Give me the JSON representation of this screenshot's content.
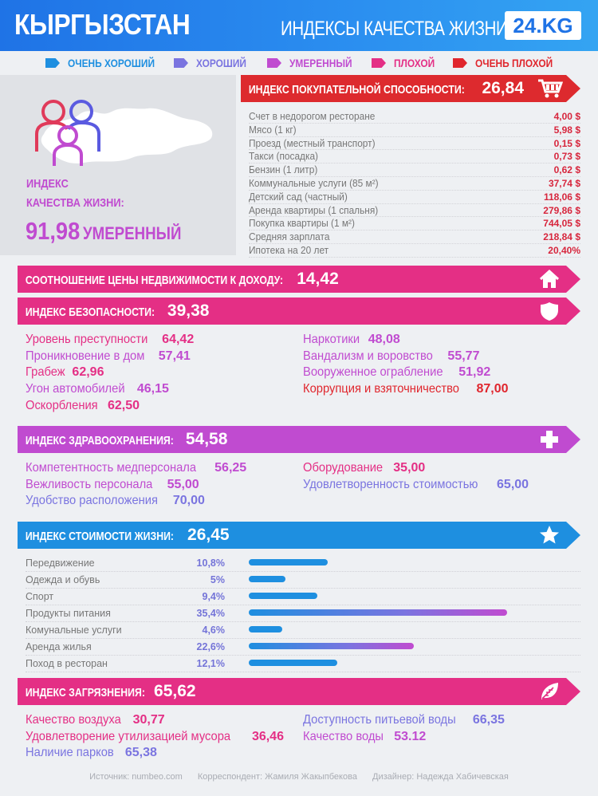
{
  "header": {
    "country": "КЫРГЫЗСТАН",
    "subtitle": "ИНДЕКСЫ КАЧЕСТВА ЖИЗНИ",
    "brand": "24.KG"
  },
  "legend": [
    {
      "label": "ОЧЕНЬ ХОРОШИЙ",
      "color": "#1e8fe0"
    },
    {
      "label": "ХОРОШИЙ",
      "color": "#7a74e0"
    },
    {
      "label": "УМЕРЕННЫЙ",
      "color": "#c04bd0"
    },
    {
      "label": "ПЛОХОЙ",
      "color": "#e42f85"
    },
    {
      "label": "ОЧЕНЬ ПЛОХОЙ",
      "color": "#e0262d"
    }
  ],
  "quality": {
    "label_line1": "ИНДЕКС",
    "label_line2": "КАЧЕСТВА ЖИЗНИ:",
    "value": "91,98",
    "level": "УМЕРЕННЫЙ"
  },
  "purchasing": {
    "label": "ИНДЕКС ПОКУПАТЕЛЬНОЙ СПОСОБНОСТИ:",
    "value": "26,84",
    "color": "#dd2a2e",
    "items": [
      {
        "name": "Счет в недорогом ресторане",
        "value": "4,00 $"
      },
      {
        "name": "Мясо (1 кг)",
        "value": "5,98 $"
      },
      {
        "name": "Проезд (местный транспорт)",
        "value": "0,15 $"
      },
      {
        "name": "Такси (посадка)",
        "value": "0,73 $"
      },
      {
        "name": "Бензин (1 литр)",
        "value": "0,62 $"
      },
      {
        "name": "Коммунальные услуги (85 м²)",
        "value": "37,74 $"
      },
      {
        "name": "Детский сад (частный)",
        "value": "118,06 $"
      },
      {
        "name": "Аренда квартиры (1 спальня)",
        "value": "279,86 $"
      },
      {
        "name": "Покупка квартиры (1 м²)",
        "value": "744,05 $"
      },
      {
        "name": "Средняя зарплата",
        "value": "218,84 $"
      },
      {
        "name": "Ипотека на 20 лет",
        "value": "20,40%"
      }
    ]
  },
  "property": {
    "label": "СООТНОШЕНИЕ ЦЕНЫ НЕДВИЖИМОСТИ К ДОХОДУ:",
    "value": "14,42",
    "color": "#e42f85"
  },
  "safety": {
    "label": "ИНДЕКС БЕЗОПАСНОСТИ:",
    "value": "39,38",
    "color": "#e42f85",
    "left": [
      {
        "name": "Уровень преступности",
        "value": "64,42",
        "color": "#e42f85"
      },
      {
        "name": "Проникновение в дом",
        "value": "57,41",
        "color": "#c04bd0"
      },
      {
        "name": "Грабеж",
        "value": "62,96",
        "color": "#e42f85"
      },
      {
        "name": "Угон автомобилей",
        "value": "46,15",
        "color": "#c04bd0"
      },
      {
        "name": "Оскорбления",
        "value": "62,50",
        "color": "#e42f85"
      }
    ],
    "right": [
      {
        "name": "Наркотики",
        "value": "48,08",
        "color": "#c04bd0"
      },
      {
        "name": "Вандализм и воровство",
        "value": "55,77",
        "color": "#c04bd0"
      },
      {
        "name": "Вооруженное ограбление",
        "value": "51,92",
        "color": "#c04bd0"
      },
      {
        "name": "Коррупция и взяточничество",
        "value": "87,00",
        "color": "#e0262d"
      }
    ]
  },
  "health": {
    "label": "ИНДЕКС ЗДРАВООХРАНЕНИЯ:",
    "value": "54,58",
    "color": "#c04bd0",
    "left": [
      {
        "name": "Компетентность медперсонала",
        "value": "56,25",
        "color": "#c04bd0"
      },
      {
        "name": "Вежливость персонала",
        "value": "55,00",
        "color": "#c04bd0"
      },
      {
        "name": "Удобство расположения",
        "value": "70,00",
        "color": "#7a74e0"
      }
    ],
    "right": [
      {
        "name": "Оборудование",
        "value": "35,00",
        "color": "#e42f85"
      },
      {
        "name": "Удовлетворенность стоимостью",
        "value": "65,00",
        "color": "#7a74e0"
      }
    ]
  },
  "cost": {
    "label": "ИНДЕКС СТОИМОСТИ ЖИЗНИ:",
    "value": "26,45",
    "color": "#1e8fe0",
    "items": [
      {
        "name": "Передвижение",
        "value": "10,8%",
        "share": 10.8
      },
      {
        "name": "Одежда и обувь",
        "value": "5%",
        "share": 5
      },
      {
        "name": "Спорт",
        "value": "9,4%",
        "share": 9.4
      },
      {
        "name": "Продукты питания",
        "value": "35,4%",
        "share": 35.4
      },
      {
        "name": "Комунальные услуги",
        "value": "4,6%",
        "share": 4.6
      },
      {
        "name": "Аренда жилья",
        "value": "22,6%",
        "share": 22.6
      },
      {
        "name": "Поход в ресторан",
        "value": "12,1%",
        "share": 12.1
      }
    ]
  },
  "pollution": {
    "label": "ИНДЕКС ЗАГРЯЗНЕНИЯ:",
    "value": "65,62",
    "color": "#e42f85",
    "left": [
      {
        "name": "Качество воздуха",
        "value": "30,77",
        "color": "#e42f85"
      },
      {
        "name": "Удовлетворение утилизацией мусора",
        "value": "36,46",
        "color": "#e42f85"
      },
      {
        "name": "Наличие парков",
        "value": "65,38",
        "color": "#7a74e0"
      }
    ],
    "right": [
      {
        "name": "Доступность питьевой воды",
        "value": "66,35",
        "color": "#7a74e0"
      },
      {
        "name": "Качество воды",
        "value": "53.12",
        "color": "#c04bd0"
      }
    ]
  },
  "footer": {
    "source": "Источник: numbeo.com",
    "author": "Корреспондент: Жамиля Жакыпбекова",
    "designer": "Дизайнер: Надежда Хабичевская"
  }
}
